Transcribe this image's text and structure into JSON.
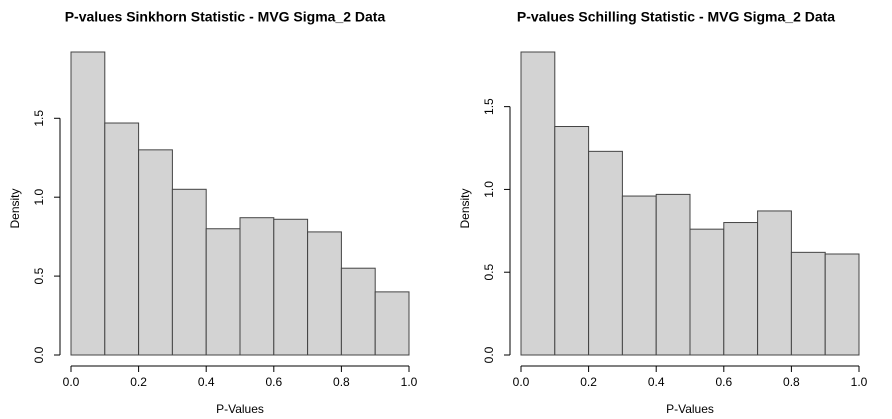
{
  "chart_data": [
    {
      "type": "histogram",
      "title": "P-values Sinkhorn Statistic - MVG Sigma_2 Data",
      "xlabel": "P-Values",
      "ylabel": "Density",
      "bins": [
        0,
        0.1,
        0.2,
        0.3,
        0.4,
        0.5,
        0.6,
        0.7,
        0.8,
        0.9,
        1.0
      ],
      "values": [
        1.92,
        1.47,
        1.3,
        1.05,
        0.8,
        0.87,
        0.86,
        0.78,
        0.55,
        0.4
      ],
      "color": "#d3d3d3",
      "xlim": [
        0,
        1
      ],
      "ylim": [
        0,
        1.92
      ],
      "xticks": [
        {
          "value": 0,
          "label": "0.0"
        },
        0.2,
        0.4,
        0.6,
        0.8,
        {
          "value": 1,
          "label": "1.0"
        }
      ],
      "yticks": [
        {
          "value": 0,
          "label": "0.0"
        },
        0.5,
        {
          "value": 1,
          "label": "1.0"
        },
        1.5
      ]
    },
    {
      "type": "histogram",
      "title": "P-values Schilling Statistic - MVG Sigma_2 Data",
      "xlabel": "P-Values",
      "ylabel": "Density",
      "bins": [
        0,
        0.1,
        0.2,
        0.3,
        0.4,
        0.5,
        0.6,
        0.7,
        0.8,
        0.9,
        1.0
      ],
      "values": [
        1.83,
        1.38,
        1.23,
        0.96,
        0.97,
        0.76,
        0.8,
        0.87,
        0.62,
        0.61
      ],
      "color": "#d3d3d3",
      "xlim": [
        0,
        1
      ],
      "ylim": [
        0,
        1.83
      ],
      "xticks": [
        {
          "value": 0,
          "label": "0.0"
        },
        0.2,
        0.4,
        0.6,
        0.8,
        {
          "value": 1,
          "label": "1.0"
        }
      ],
      "yticks": [
        {
          "value": 0,
          "label": "0.0"
        },
        0.5,
        {
          "value": 1,
          "label": "1.0"
        },
        1.5
      ]
    }
  ]
}
